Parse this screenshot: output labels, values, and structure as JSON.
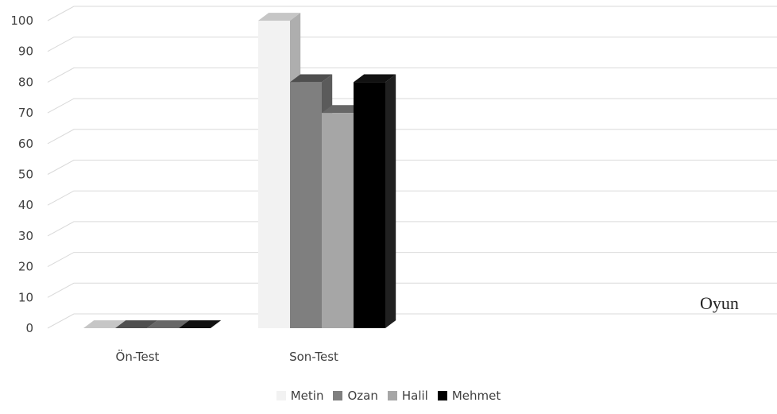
{
  "chart_data": {
    "type": "bar",
    "title": "",
    "xlabel": "",
    "ylabel": "",
    "ylim": [
      0,
      100
    ],
    "y_ticks": [
      "0",
      "10",
      "20",
      "30",
      "40",
      "50",
      "60",
      "70",
      "80",
      "90",
      "100"
    ],
    "categories": [
      "Ön-Test",
      "Son-Test"
    ],
    "series": [
      {
        "name": "Metin",
        "values": [
          0,
          100
        ],
        "color": "#f2f2f2"
      },
      {
        "name": "Ozan",
        "values": [
          0,
          80
        ],
        "color": "#7f7f7f"
      },
      {
        "name": "Halil",
        "values": [
          0,
          70
        ],
        "color": "#a6a6a6"
      },
      {
        "name": "Mehmet",
        "values": [
          0,
          80
        ],
        "color": "#000000"
      }
    ],
    "annotation": "Oyun",
    "grid": true,
    "three_d": true,
    "legend_position": "bottom"
  }
}
